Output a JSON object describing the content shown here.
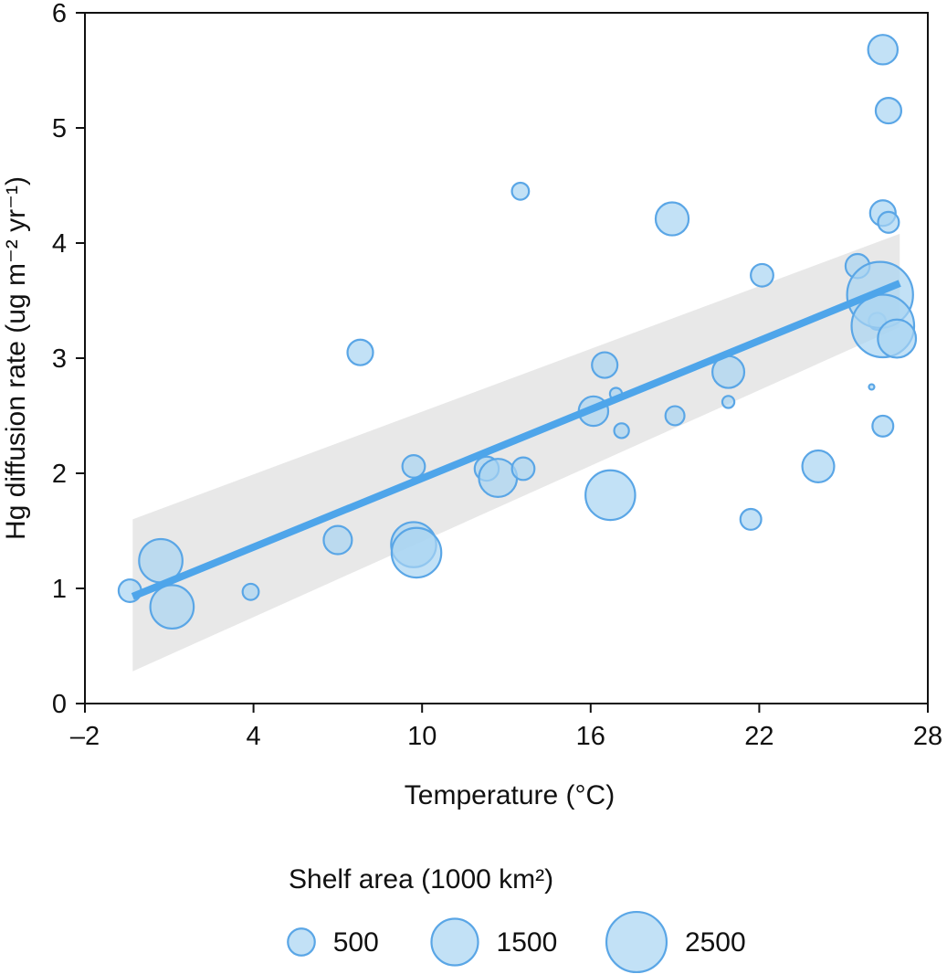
{
  "chart_data": {
    "type": "scatter",
    "xlabel": "Temperature (°C)",
    "ylabel": "Hg diffusion rate (ug m⁻² yr⁻¹)",
    "xlim": [
      -2,
      28
    ],
    "ylim": [
      0,
      6
    ],
    "xticks": [
      -2,
      4,
      10,
      16,
      22,
      28
    ],
    "xtick_labels": [
      "–2",
      "4",
      "10",
      "16",
      "22",
      "28"
    ],
    "yticks": [
      0,
      1,
      2,
      3,
      4,
      5,
      6
    ],
    "ytick_labels": [
      "0",
      "1",
      "2",
      "3",
      "4",
      "5",
      "6"
    ],
    "grid": false,
    "legend": {
      "title": "Shelf area (1000 km²)",
      "placement": "bottom",
      "entries": [
        {
          "label": "500",
          "size": 500
        },
        {
          "label": "1500",
          "size": 1500
        },
        {
          "label": "2500",
          "size": 2500
        }
      ]
    },
    "colors": {
      "point_fill": "#a8d4f2",
      "point_stroke": "#5aa6e6",
      "fit_line": "#4ea5ea",
      "ci_band": "#e8e8e8"
    },
    "fit": {
      "type": "linear",
      "x": [
        -0.3,
        27
      ],
      "y": [
        0.93,
        3.65
      ],
      "ci_lower": [
        0.28,
        3.27
      ],
      "ci_upper": [
        1.6,
        4.08
      ]
    },
    "points": [
      {
        "x": -0.4,
        "y": 0.98,
        "area": 350
      },
      {
        "x": 0.7,
        "y": 1.24,
        "area": 1300
      },
      {
        "x": 1.1,
        "y": 0.84,
        "area": 1300
      },
      {
        "x": 3.9,
        "y": 0.97,
        "area": 180
      },
      {
        "x": 7.0,
        "y": 1.42,
        "area": 550
      },
      {
        "x": 7.8,
        "y": 3.05,
        "area": 450
      },
      {
        "x": 9.7,
        "y": 2.06,
        "area": 350
      },
      {
        "x": 9.7,
        "y": 1.38,
        "area": 1400
      },
      {
        "x": 9.8,
        "y": 1.31,
        "area": 1700
      },
      {
        "x": 12.3,
        "y": 2.04,
        "area": 400
      },
      {
        "x": 12.7,
        "y": 1.96,
        "area": 1000
      },
      {
        "x": 13.5,
        "y": 4.45,
        "area": 200
      },
      {
        "x": 13.6,
        "y": 2.04,
        "area": 350
      },
      {
        "x": 16.1,
        "y": 2.54,
        "area": 600
      },
      {
        "x": 16.5,
        "y": 2.94,
        "area": 450
      },
      {
        "x": 16.7,
        "y": 1.81,
        "area": 1700
      },
      {
        "x": 16.9,
        "y": 2.69,
        "area": 100
      },
      {
        "x": 17.1,
        "y": 2.37,
        "area": 150
      },
      {
        "x": 18.9,
        "y": 4.21,
        "area": 750
      },
      {
        "x": 19.0,
        "y": 2.5,
        "area": 250
      },
      {
        "x": 20.9,
        "y": 2.88,
        "area": 700
      },
      {
        "x": 20.9,
        "y": 2.62,
        "area": 100
      },
      {
        "x": 21.7,
        "y": 1.6,
        "area": 300
      },
      {
        "x": 22.1,
        "y": 3.72,
        "area": 350
      },
      {
        "x": 24.1,
        "y": 2.06,
        "area": 700
      },
      {
        "x": 25.5,
        "y": 3.8,
        "area": 400
      },
      {
        "x": 26.0,
        "y": 2.75,
        "area": 20
      },
      {
        "x": 26.2,
        "y": 3.32,
        "area": 200
      },
      {
        "x": 26.3,
        "y": 3.55,
        "area": 3000
      },
      {
        "x": 26.4,
        "y": 3.28,
        "area": 2700
      },
      {
        "x": 26.4,
        "y": 5.68,
        "area": 600
      },
      {
        "x": 26.4,
        "y": 4.26,
        "area": 450
      },
      {
        "x": 26.4,
        "y": 2.41,
        "area": 300
      },
      {
        "x": 26.6,
        "y": 5.15,
        "area": 450
      },
      {
        "x": 26.6,
        "y": 4.18,
        "area": 300
      },
      {
        "x": 26.9,
        "y": 3.17,
        "area": 1000
      }
    ]
  }
}
